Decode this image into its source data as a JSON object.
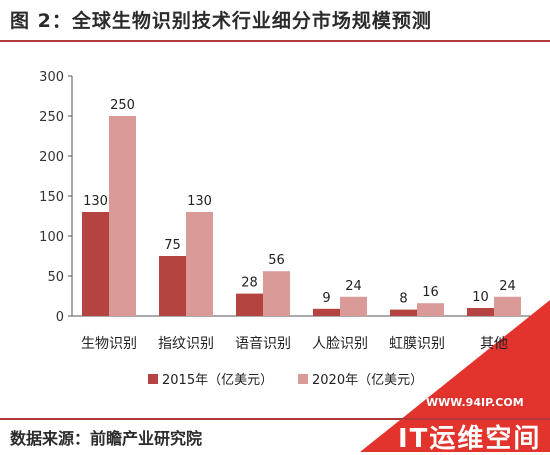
{
  "header": {
    "title": "图 2：全球生物识别技术行业细分市场规模预测"
  },
  "footer": {
    "source": "数据来源：前瞻产业研究院"
  },
  "watermark": {
    "url": "WWW.94IP.COM",
    "name": "IT运维空间"
  },
  "colors": {
    "accent": "#b2383a",
    "series_2015": "#b5433f",
    "series_2020": "#d99a98",
    "axis": "#555555"
  },
  "chart_data": {
    "type": "bar",
    "categories": [
      "生物识别",
      "指纹识别",
      "语音识别",
      "人脸识别",
      "虹膜识别",
      "其他"
    ],
    "series": [
      {
        "name": "2015年（亿美元）",
        "values": [
          130,
          75,
          28,
          9,
          8,
          10
        ]
      },
      {
        "name": "2020年（亿美元）",
        "values": [
          250,
          130,
          56,
          24,
          16,
          24
        ]
      }
    ],
    "ylim": [
      0,
      300
    ],
    "yticks": [
      0,
      50,
      100,
      150,
      200,
      250,
      300
    ],
    "grid": false,
    "legend_position": "bottom"
  }
}
